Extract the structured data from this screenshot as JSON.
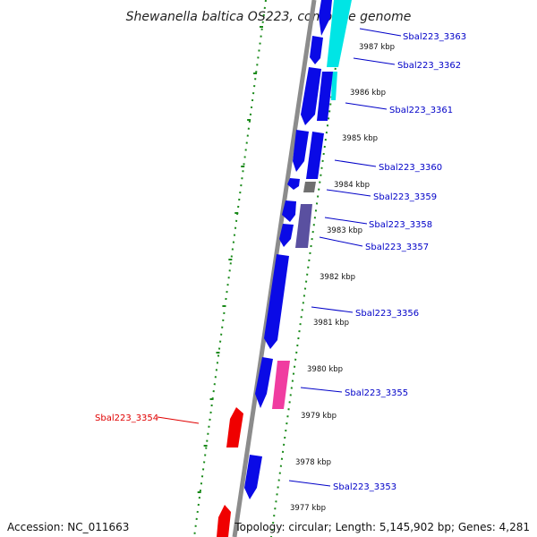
{
  "title": "Shewanella baltica OS223, complete genome",
  "accession_text": "Accession: NC_011663",
  "summary_text": "Topology: circular; Length: 5,145,902 bp; Genes: 4,281",
  "colors": {
    "backbone": "#8c8c8c",
    "dotted_guides": "#1a8a1a",
    "tick_marks": "#1a8a1a",
    "gene_blue": "#0a0ae6",
    "gene_cyan": "#00e5e5",
    "gene_slate": "#5a50a0",
    "gene_gray": "#707070",
    "gene_pink": "#f03ca0",
    "gene_red": "#f00000",
    "label_blue": "#0000c8",
    "label_red": "#e00000"
  },
  "kbp_labels": [
    "3987 kbp",
    "3986 kbp",
    "3985 kbp",
    "3984 kbp",
    "3983 kbp",
    "3982 kbp",
    "3981 kbp",
    "3980 kbp",
    "3979 kbp",
    "3978 kbp",
    "3977 kbp"
  ],
  "gene_labels": [
    {
      "text": "Sbal223_3363",
      "strand": "forward"
    },
    {
      "text": "Sbal223_3362",
      "strand": "forward"
    },
    {
      "text": "Sbal223_3361",
      "strand": "forward"
    },
    {
      "text": "Sbal223_3360",
      "strand": "forward"
    },
    {
      "text": "Sbal223_3359",
      "strand": "forward"
    },
    {
      "text": "Sbal223_3358",
      "strand": "forward"
    },
    {
      "text": "Sbal223_3357",
      "strand": "forward"
    },
    {
      "text": "Sbal223_3356",
      "strand": "forward"
    },
    {
      "text": "Sbal223_3355",
      "strand": "forward"
    },
    {
      "text": "Sbal223_3354",
      "strand": "reverse"
    },
    {
      "text": "Sbal223_3353",
      "strand": "forward"
    }
  ]
}
